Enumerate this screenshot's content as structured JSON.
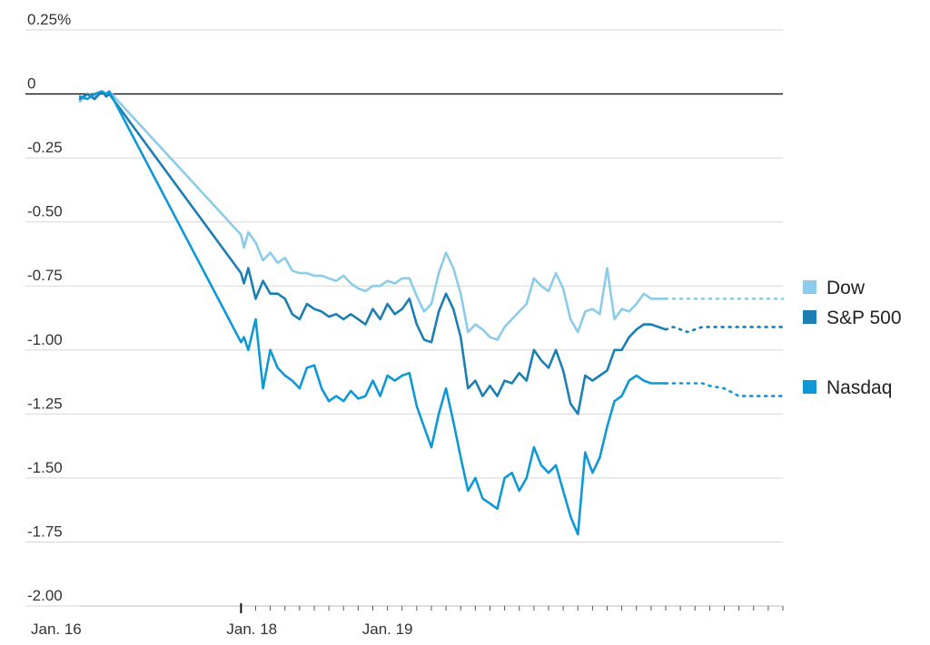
{
  "chart_data": {
    "type": "line",
    "y_unit": "%",
    "y_tick_labels": [
      "0.25%",
      "0",
      "-0.25",
      "-0.50",
      "-0.75",
      "-1.00",
      "-1.25",
      "-1.50",
      "-1.75",
      "-2.00"
    ],
    "y_ticks": [
      0.25,
      0,
      -0.25,
      -0.5,
      -0.75,
      -1.0,
      -1.25,
      -1.5,
      -1.75,
      -2.0
    ],
    "ylim": [
      -2.0,
      0.25
    ],
    "x_tick_labels": [
      "Jan. 16",
      "Jan. 18",
      "Jan. 19"
    ],
    "x_label_positions": [
      16.9,
      18.0,
      19.0
    ],
    "xlim": [
      16.9,
      21.7
    ],
    "solid_until": 20.9,
    "grid": true,
    "legend_position": "right",
    "series": [
      {
        "name": "Dow",
        "color": "#8ccbea",
        "x": [
          16.9,
          16.95,
          17.0,
          17.05,
          17.08,
          17.1,
          18.0,
          18.02,
          18.05,
          18.1,
          18.15,
          18.2,
          18.25,
          18.3,
          18.35,
          18.4,
          18.45,
          18.5,
          18.55,
          18.6,
          18.65,
          18.7,
          18.75,
          18.8,
          18.85,
          18.9,
          18.95,
          19.0,
          19.05,
          19.1,
          19.15,
          19.2,
          19.25,
          19.3,
          19.35,
          19.4,
          19.45,
          19.5,
          19.55,
          19.6,
          19.65,
          19.7,
          19.75,
          19.8,
          19.85,
          19.9,
          19.95,
          20.0,
          20.05,
          20.1,
          20.15,
          20.2,
          20.25,
          20.3,
          20.35,
          20.4,
          20.45,
          20.5,
          20.55,
          20.6,
          20.65,
          20.7,
          20.75,
          20.8,
          20.85,
          20.9,
          20.95,
          21.0,
          21.05,
          21.1,
          21.15,
          21.2,
          21.3,
          21.4,
          21.5,
          21.6,
          21.7
        ],
        "values": [
          -0.03,
          0.0,
          -0.01,
          0.01,
          0.0,
          0.01,
          -0.55,
          -0.6,
          -0.54,
          -0.58,
          -0.65,
          -0.62,
          -0.66,
          -0.64,
          -0.69,
          -0.7,
          -0.7,
          -0.71,
          -0.71,
          -0.72,
          -0.73,
          -0.71,
          -0.74,
          -0.76,
          -0.77,
          -0.75,
          -0.75,
          -0.73,
          -0.74,
          -0.72,
          -0.72,
          -0.79,
          -0.85,
          -0.82,
          -0.7,
          -0.62,
          -0.68,
          -0.78,
          -0.93,
          -0.9,
          -0.92,
          -0.95,
          -0.96,
          -0.91,
          -0.88,
          -0.85,
          -0.82,
          -0.72,
          -0.75,
          -0.77,
          -0.7,
          -0.76,
          -0.88,
          -0.93,
          -0.85,
          -0.84,
          -0.86,
          -0.68,
          -0.88,
          -0.84,
          -0.85,
          -0.82,
          -0.78,
          -0.8,
          -0.8,
          -0.8,
          -0.8,
          -0.8,
          -0.8,
          -0.8,
          -0.8,
          -0.8,
          -0.8,
          -0.8,
          -0.8,
          -0.8,
          -0.8
        ]
      },
      {
        "name": "S&P 500",
        "color": "#1b7fb3",
        "x": [
          16.9,
          16.95,
          17.0,
          17.05,
          17.08,
          17.1,
          18.0,
          18.02,
          18.05,
          18.1,
          18.15,
          18.2,
          18.25,
          18.3,
          18.35,
          18.4,
          18.45,
          18.5,
          18.55,
          18.6,
          18.65,
          18.7,
          18.75,
          18.8,
          18.85,
          18.9,
          18.95,
          19.0,
          19.05,
          19.1,
          19.15,
          19.2,
          19.25,
          19.3,
          19.35,
          19.4,
          19.45,
          19.5,
          19.55,
          19.6,
          19.65,
          19.7,
          19.75,
          19.8,
          19.85,
          19.9,
          19.95,
          20.0,
          20.05,
          20.1,
          20.15,
          20.2,
          20.25,
          20.3,
          20.35,
          20.4,
          20.45,
          20.5,
          20.55,
          20.6,
          20.65,
          20.7,
          20.75,
          20.8,
          20.85,
          20.9,
          20.95,
          21.0,
          21.05,
          21.1,
          21.15,
          21.2,
          21.3,
          21.4,
          21.5,
          21.6,
          21.7
        ],
        "values": [
          -0.02,
          0.0,
          -0.02,
          0.01,
          -0.01,
          0.0,
          -0.7,
          -0.74,
          -0.68,
          -0.8,
          -0.73,
          -0.78,
          -0.78,
          -0.8,
          -0.86,
          -0.88,
          -0.82,
          -0.84,
          -0.85,
          -0.87,
          -0.86,
          -0.88,
          -0.86,
          -0.88,
          -0.9,
          -0.84,
          -0.88,
          -0.82,
          -0.86,
          -0.84,
          -0.8,
          -0.9,
          -0.96,
          -0.97,
          -0.85,
          -0.78,
          -0.84,
          -0.95,
          -1.15,
          -1.12,
          -1.18,
          -1.14,
          -1.18,
          -1.12,
          -1.13,
          -1.09,
          -1.12,
          -1.0,
          -1.04,
          -1.07,
          -1.0,
          -1.08,
          -1.21,
          -1.25,
          -1.1,
          -1.12,
          -1.1,
          -1.08,
          -1.0,
          -1.0,
          -0.95,
          -0.92,
          -0.9,
          -0.9,
          -0.91,
          -0.92,
          -0.91,
          -0.92,
          -0.93,
          -0.92,
          -0.91,
          -0.91,
          -0.91,
          -0.91,
          -0.91,
          -0.91,
          -0.91
        ]
      },
      {
        "name": "Nasdaq",
        "color": "#0f98d6",
        "x": [
          16.9,
          16.95,
          17.0,
          17.05,
          17.08,
          17.1,
          18.0,
          18.02,
          18.05,
          18.1,
          18.15,
          18.2,
          18.25,
          18.3,
          18.35,
          18.4,
          18.45,
          18.5,
          18.55,
          18.6,
          18.65,
          18.7,
          18.75,
          18.8,
          18.85,
          18.9,
          18.95,
          19.0,
          19.05,
          19.1,
          19.15,
          19.2,
          19.25,
          19.3,
          19.35,
          19.4,
          19.45,
          19.5,
          19.55,
          19.6,
          19.65,
          19.7,
          19.75,
          19.8,
          19.85,
          19.9,
          19.95,
          20.0,
          20.05,
          20.1,
          20.15,
          20.2,
          20.25,
          20.3,
          20.35,
          20.4,
          20.45,
          20.5,
          20.55,
          20.6,
          20.65,
          20.7,
          20.75,
          20.8,
          20.85,
          20.9,
          20.95,
          21.0,
          21.05,
          21.1,
          21.15,
          21.2,
          21.3,
          21.4,
          21.5,
          21.6,
          21.7
        ],
        "values": [
          -0.01,
          -0.02,
          0.0,
          0.01,
          0.0,
          0.01,
          -0.97,
          -0.95,
          -1.0,
          -0.88,
          -1.15,
          -1.0,
          -1.07,
          -1.1,
          -1.12,
          -1.15,
          -1.07,
          -1.06,
          -1.15,
          -1.2,
          -1.18,
          -1.2,
          -1.16,
          -1.19,
          -1.18,
          -1.12,
          -1.18,
          -1.1,
          -1.12,
          -1.1,
          -1.09,
          -1.22,
          -1.3,
          -1.38,
          -1.25,
          -1.15,
          -1.28,
          -1.42,
          -1.55,
          -1.5,
          -1.58,
          -1.6,
          -1.62,
          -1.5,
          -1.48,
          -1.55,
          -1.5,
          -1.38,
          -1.45,
          -1.48,
          -1.45,
          -1.55,
          -1.65,
          -1.72,
          -1.4,
          -1.48,
          -1.42,
          -1.3,
          -1.2,
          -1.18,
          -1.12,
          -1.1,
          -1.12,
          -1.13,
          -1.13,
          -1.13,
          -1.13,
          -1.13,
          -1.13,
          -1.13,
          -1.13,
          -1.14,
          -1.15,
          -1.18,
          -1.18,
          -1.18,
          -1.18
        ]
      }
    ]
  }
}
